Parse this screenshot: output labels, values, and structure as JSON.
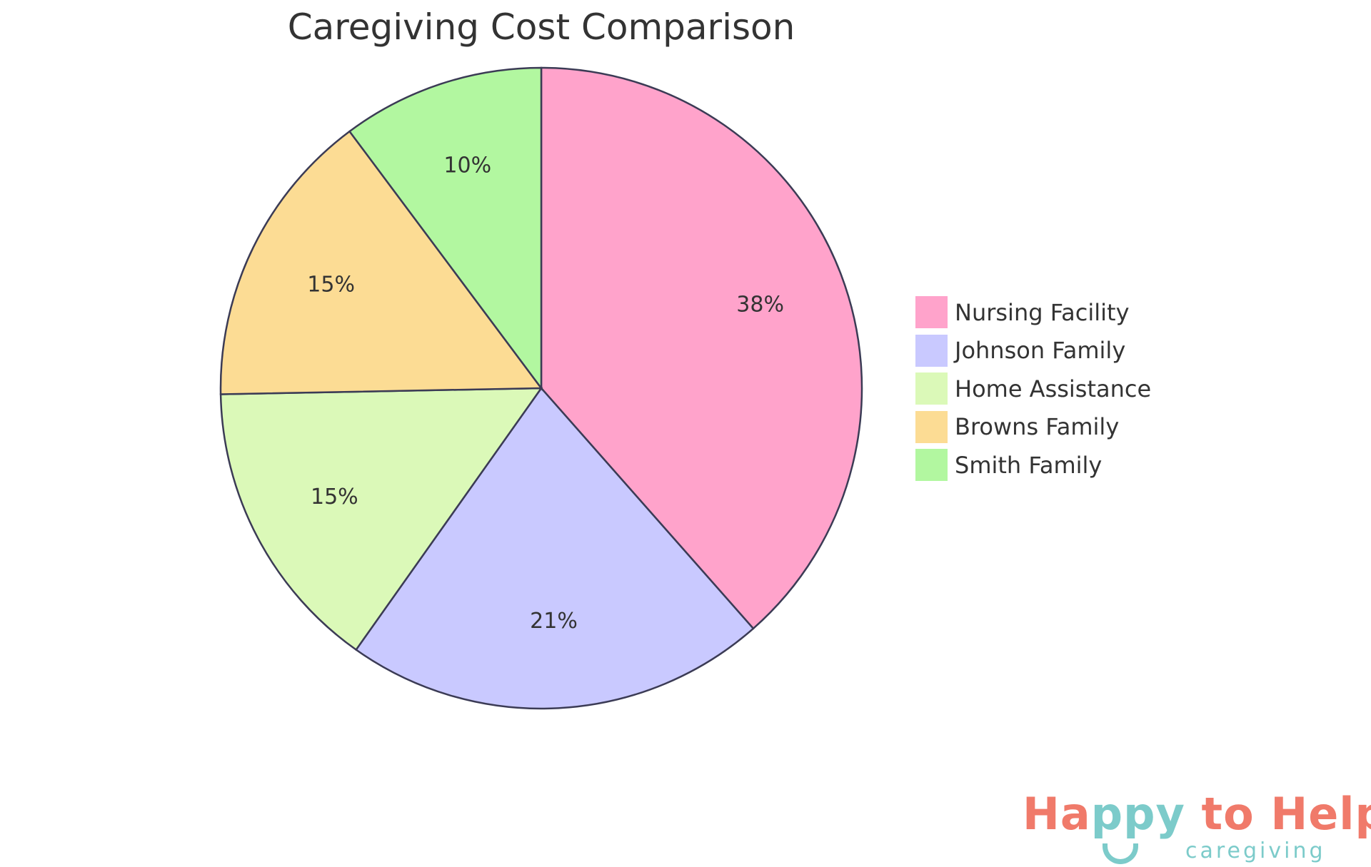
{
  "chart_data": {
    "type": "pie",
    "title": "Caregiving Cost Comparison",
    "categories": [
      "Nursing Facility",
      "Johnson Family",
      "Home Assistance",
      "Browns Family",
      "Smith Family"
    ],
    "values": [
      38.5,
      21.3,
      14.9,
      15.1,
      10.2
    ],
    "labels": [
      "38%",
      "21%",
      "15%",
      "15%",
      "10%"
    ],
    "colors": [
      "#ffa3cb",
      "#c9c9ff",
      "#dbf9b8",
      "#fcdc94",
      "#b2f7a0"
    ],
    "stroke_color": "#3b3b55",
    "start": "top",
    "direction": "clockwise",
    "legend_placement": "right"
  },
  "logo": {
    "main_part1": "Ha",
    "main_teal": "ppy",
    "main_part2": " to Help",
    "sub": "caregiving",
    "primary_color": "#f07a6a",
    "secondary_color": "#7ccbca"
  }
}
